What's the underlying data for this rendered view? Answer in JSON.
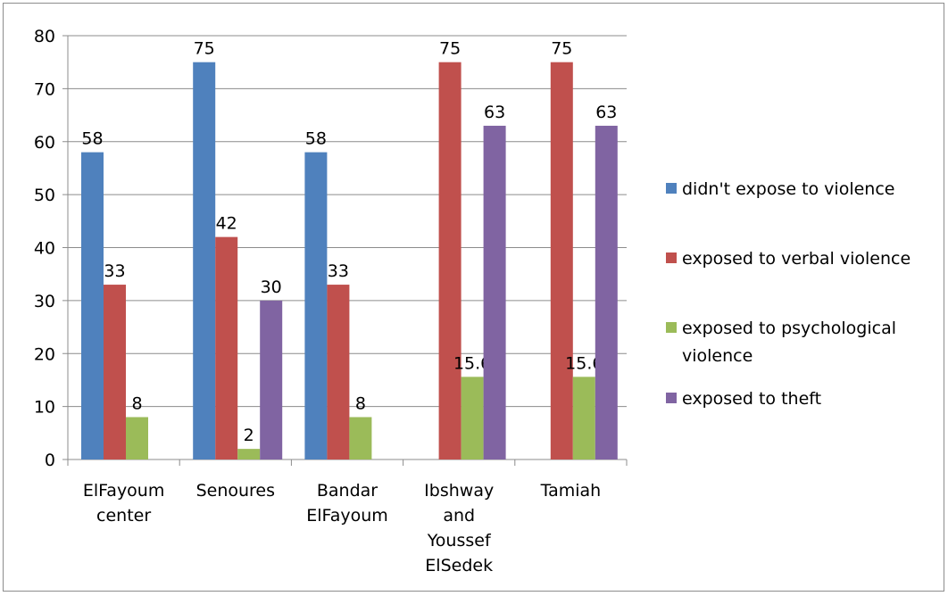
{
  "chart_data": {
    "type": "bar",
    "title": "",
    "xlabel": "",
    "ylabel": "",
    "ylim": [
      0,
      80
    ],
    "yticks": [
      0,
      10,
      20,
      30,
      40,
      50,
      60,
      70,
      80
    ],
    "grid": true,
    "legend_position": "right",
    "categories": [
      [
        "ElFayoum",
        "center"
      ],
      [
        "Senoures"
      ],
      [
        "Bandar",
        "ElFayoum"
      ],
      [
        "Ibshway",
        "and",
        "Youssef",
        "ElSedek"
      ],
      [
        "Tamiah"
      ]
    ],
    "series": [
      {
        "name": [
          "didn't expose to violence"
        ],
        "color": "#4F81BD",
        "values": [
          58,
          75,
          58,
          null,
          null
        ],
        "labels": [
          "58",
          "75",
          "58",
          "",
          ""
        ]
      },
      {
        "name": [
          "exposed to verbal violence"
        ],
        "color": "#C0504D",
        "values": [
          33,
          42,
          33,
          75,
          75
        ],
        "labels": [
          "33",
          "42",
          "33",
          "75",
          "75"
        ]
      },
      {
        "name": [
          "exposed to psychological",
          "violence"
        ],
        "color": "#9BBB59",
        "values": [
          8,
          2,
          8,
          15.6,
          15.6
        ],
        "labels": [
          "8",
          "2",
          "8",
          "15.6",
          "15.6"
        ]
      },
      {
        "name": [
          "exposed to theft"
        ],
        "color": "#8064A2",
        "values": [
          null,
          30,
          null,
          63,
          63
        ],
        "labels": [
          "",
          "30",
          "",
          "63",
          "63"
        ]
      }
    ]
  }
}
